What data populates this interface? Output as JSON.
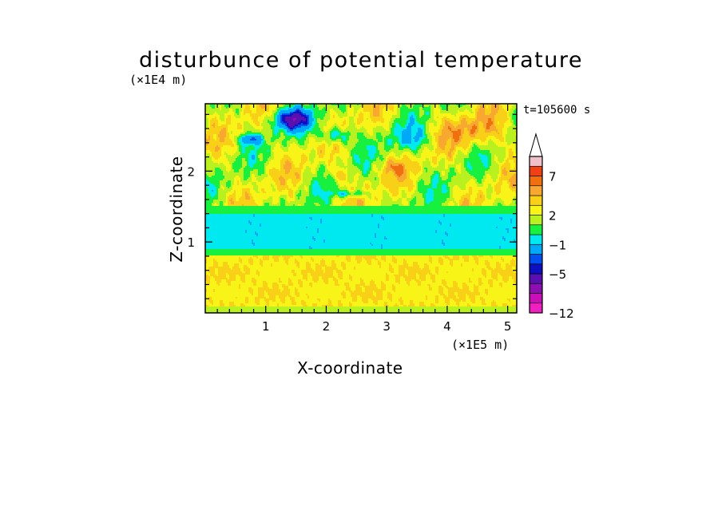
{
  "chart_data": {
    "type": "heatmap",
    "title": "disturbunce of potential temperature",
    "xlabel": "X-coordinate",
    "ylabel": "Z-coordinate",
    "x_unit": "(×1E5 m)",
    "y_unit": "(×1E4 m)",
    "time_label": "t=105600 s",
    "xlim": [
      0,
      5.15
    ],
    "ylim": [
      0,
      2.95
    ],
    "x_ticks": [
      "1",
      "2",
      "3",
      "4",
      "5"
    ],
    "y_ticks": [
      "1",
      "2"
    ],
    "colorbar": {
      "extend": "max",
      "labels": [
        "7",
        "2",
        "−1",
        "−5",
        "−12"
      ],
      "levels": [
        {
          "from": -12,
          "to": -11,
          "color": "#f020c0"
        },
        {
          "from": -11,
          "to": -9,
          "color": "#c810b8"
        },
        {
          "from": -9,
          "to": -7,
          "color": "#8c10b0"
        },
        {
          "from": -7,
          "to": -5,
          "color": "#5810b0"
        },
        {
          "from": -5,
          "to": -4,
          "color": "#0c10c0"
        },
        {
          "from": -4,
          "to": -3,
          "color": "#0050f0"
        },
        {
          "from": -3,
          "to": -1,
          "color": "#00a8f8"
        },
        {
          "from": -1,
          "to": 0,
          "color": "#00e8f0"
        },
        {
          "from": 0,
          "to": 1,
          "color": "#18f040"
        },
        {
          "from": 1,
          "to": 2,
          "color": "#b8f020"
        },
        {
          "from": 2,
          "to": 3,
          "color": "#f8f418"
        },
        {
          "from": 3,
          "to": 4,
          "color": "#f8d018"
        },
        {
          "from": 4,
          "to": 5,
          "color": "#f8a830"
        },
        {
          "from": 5,
          "to": 7,
          "color": "#f07010"
        },
        {
          "from": 7,
          "to": 9,
          "color": "#f04018"
        },
        {
          "from": 9,
          "to": 11,
          "color": "#f0c0c8"
        }
      ]
    },
    "field_description": "noisy 2-D field: warm layer (2 to 4) below z≈0.8, cold band (−1 to 0) at z≈0.9–1.4, wavy warm/cold structures above with cold cores (≈−4 to −5) near x≈1.5,z≈2.7 and warm cores (≈5) near x≈4.5,z≈2.6"
  }
}
